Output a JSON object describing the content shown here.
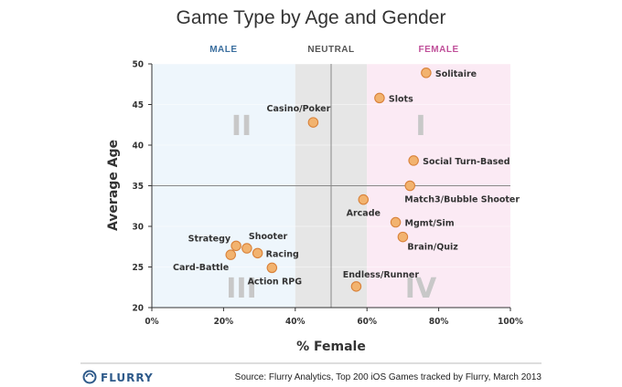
{
  "chart_data": {
    "type": "scatter",
    "title": "Game Type by Age and Gender",
    "xlabel": "% Female",
    "ylabel": "Average Age",
    "xlim": [
      0,
      100
    ],
    "ylim": [
      20,
      50
    ],
    "xticks": [
      0,
      20,
      40,
      60,
      80,
      100
    ],
    "xtick_labels": [
      "0%",
      "20%",
      "40%",
      "60%",
      "80%",
      "100%"
    ],
    "yticks": [
      20,
      25,
      30,
      35,
      40,
      45,
      50
    ],
    "reference_lines": {
      "x": 50,
      "y": 35
    },
    "zones": [
      {
        "label": "MALE",
        "x_range": [
          0,
          40
        ],
        "fill": "#eef6fc",
        "text_color": "#3a6e9e"
      },
      {
        "label": "NEUTRAL",
        "x_range": [
          40,
          60
        ],
        "fill": "#e6e6e6",
        "text_color": "#555555"
      },
      {
        "label": "FEMALE",
        "x_range": [
          60,
          100
        ],
        "fill": "#fbeaf4",
        "text_color": "#c0509a"
      }
    ],
    "quadrants": [
      {
        "label": "I",
        "x": 75,
        "y": 42.5
      },
      {
        "label": "II",
        "x": 25,
        "y": 42.5
      },
      {
        "label": "III",
        "x": 25,
        "y": 22.5
      },
      {
        "label": "IV",
        "x": 75,
        "y": 22.5
      }
    ],
    "points": [
      {
        "label": "Solitaire",
        "x": 76.5,
        "y": 48.9
      },
      {
        "label": "Slots",
        "x": 63.5,
        "y": 45.8
      },
      {
        "label": "Casino/Poker",
        "x": 45,
        "y": 42.8
      },
      {
        "label": "Social Turn-Based",
        "x": 73,
        "y": 38.1
      },
      {
        "label": "Match3/Bubble Shooter",
        "x": 72,
        "y": 35
      },
      {
        "label": "Arcade",
        "x": 59,
        "y": 33.3
      },
      {
        "label": "Mgmt/Sim",
        "x": 68,
        "y": 30.5
      },
      {
        "label": "Brain/Quiz",
        "x": 70,
        "y": 28.7
      },
      {
        "label": "Strategy",
        "x": 23.5,
        "y": 27.6
      },
      {
        "label": "Shooter",
        "x": 26.5,
        "y": 27.3
      },
      {
        "label": "Racing",
        "x": 29.5,
        "y": 26.7
      },
      {
        "label": "Card-Battle",
        "x": 22,
        "y": 26.5
      },
      {
        "label": "Action RPG",
        "x": 33.5,
        "y": 24.9
      },
      {
        "label": "Endless/Runner",
        "x": 57,
        "y": 22.6
      }
    ],
    "point_color": "#f2b36f",
    "point_stroke": "#d9823a"
  },
  "footer": {
    "brand": "FLURRY",
    "source": "Source: Flurry Analytics, Top 200 iOS Games tracked by Flurry, March 2013"
  }
}
